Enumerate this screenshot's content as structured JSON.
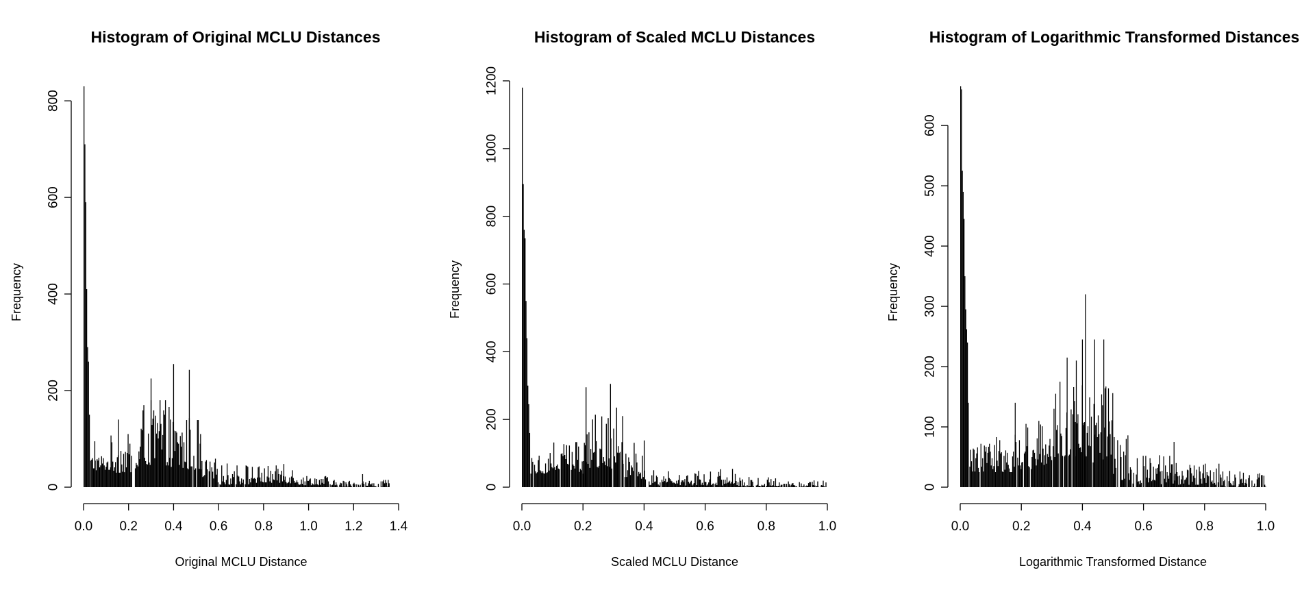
{
  "chart_data": [
    {
      "type": "bar",
      "title": "Histogram of Original MCLU Distances",
      "xlabel": "Original MCLU Distance",
      "ylabel": "Frequency",
      "xlim": [
        0,
        1.4
      ],
      "ylim": [
        0,
        830
      ],
      "x_ticks": [
        0.0,
        0.2,
        0.4,
        0.6,
        0.8,
        1.0,
        1.2,
        1.4
      ],
      "x_tick_labels": [
        "0.0",
        "0.2",
        "0.4",
        "0.6",
        "0.8",
        "1.0",
        "1.2",
        "1.4"
      ],
      "y_ticks": [
        0,
        200,
        400,
        600,
        800
      ],
      "y_tick_labels": [
        "0",
        "200",
        "400",
        "600",
        "800"
      ],
      "bin_width": 0.004,
      "peaks": [
        [
          0.002,
          830
        ],
        [
          0.006,
          710
        ],
        [
          0.01,
          590
        ],
        [
          0.014,
          410
        ],
        [
          0.018,
          290
        ],
        [
          0.022,
          260
        ],
        [
          0.026,
          150
        ],
        [
          0.05,
          95
        ],
        [
          0.155,
          140
        ],
        [
          0.3,
          225
        ],
        [
          0.34,
          180
        ],
        [
          0.4,
          255
        ],
        [
          0.47,
          243
        ],
        [
          0.52,
          110
        ],
        [
          0.89,
          48
        ],
        [
          1.24,
          27
        ]
      ],
      "segments": [
        [
          0.03,
          0.12,
          70,
          35
        ],
        [
          0.12,
          0.25,
          110,
          30
        ],
        [
          0.25,
          0.38,
          180,
          45
        ],
        [
          0.38,
          0.52,
          150,
          35
        ],
        [
          0.52,
          0.6,
          60,
          10
        ],
        [
          0.6,
          0.75,
          50,
          5
        ],
        [
          0.75,
          0.95,
          45,
          8
        ],
        [
          0.95,
          1.1,
          25,
          4
        ],
        [
          1.1,
          1.36,
          15,
          0
        ]
      ]
    },
    {
      "type": "bar",
      "title": "Histogram of Scaled MCLU Distances",
      "xlabel": "Scaled MCLU Distance",
      "ylabel": "Frequency",
      "xlim": [
        0,
        1.0
      ],
      "ylim": [
        0,
        1200
      ],
      "x_ticks": [
        0.0,
        0.2,
        0.4,
        0.6,
        0.8,
        1.0
      ],
      "x_tick_labels": [
        "0.0",
        "0.2",
        "0.4",
        "0.6",
        "0.8",
        "1.0"
      ],
      "y_ticks": [
        0,
        200,
        400,
        600,
        800,
        1000,
        1200
      ],
      "y_tick_labels": [
        "0",
        "200",
        "400",
        "600",
        "800",
        "1000",
        "1200"
      ],
      "bin_width": 0.003,
      "peaks": [
        [
          0.0015,
          1180
        ],
        [
          0.0045,
          895
        ],
        [
          0.0075,
          760
        ],
        [
          0.0105,
          735
        ],
        [
          0.0135,
          550
        ],
        [
          0.0165,
          440
        ],
        [
          0.0195,
          300
        ],
        [
          0.0225,
          245
        ],
        [
          0.0255,
          160
        ],
        [
          0.21,
          295
        ],
        [
          0.29,
          305
        ],
        [
          0.31,
          235
        ],
        [
          0.33,
          210
        ]
      ],
      "segments": [
        [
          0.028,
          0.1,
          110,
          40
        ],
        [
          0.1,
          0.2,
          150,
          40
        ],
        [
          0.2,
          0.33,
          220,
          55
        ],
        [
          0.33,
          0.4,
          140,
          25
        ],
        [
          0.4,
          0.55,
          50,
          5
        ],
        [
          0.55,
          0.7,
          55,
          5
        ],
        [
          0.7,
          0.85,
          30,
          2
        ],
        [
          0.85,
          0.995,
          22,
          0
        ]
      ]
    },
    {
      "type": "bar",
      "title": "Histogram of Logarithmic Transformed Distances",
      "xlabel": "Logarithmic Transformed Distance",
      "ylabel": "Frequency",
      "xlim": [
        0,
        1.0
      ],
      "ylim": [
        0,
        665
      ],
      "x_ticks": [
        0.0,
        0.2,
        0.4,
        0.6,
        0.8,
        1.0
      ],
      "x_tick_labels": [
        "0.0",
        "0.2",
        "0.4",
        "0.6",
        "0.8",
        "1.0"
      ],
      "y_ticks": [
        0,
        100,
        200,
        300,
        400,
        500,
        600
      ],
      "y_tick_labels": [
        "0",
        "100",
        "200",
        "300",
        "400",
        "500",
        "600"
      ],
      "bin_width": 0.0028,
      "peaks": [
        [
          0.0014,
          665
        ],
        [
          0.0042,
          660
        ],
        [
          0.007,
          525
        ],
        [
          0.0098,
          490
        ],
        [
          0.0126,
          445
        ],
        [
          0.0154,
          350
        ],
        [
          0.0182,
          295
        ],
        [
          0.021,
          262
        ],
        [
          0.0238,
          240
        ],
        [
          0.0266,
          140
        ],
        [
          0.18,
          140
        ],
        [
          0.35,
          215
        ],
        [
          0.38,
          210
        ],
        [
          0.4,
          245
        ],
        [
          0.41,
          320
        ],
        [
          0.44,
          245
        ],
        [
          0.47,
          245
        ],
        [
          0.7,
          75
        ]
      ],
      "segments": [
        [
          0.03,
          0.1,
          80,
          25
        ],
        [
          0.1,
          0.2,
          90,
          25
        ],
        [
          0.2,
          0.3,
          120,
          30
        ],
        [
          0.3,
          0.4,
          180,
          50
        ],
        [
          0.4,
          0.5,
          170,
          40
        ],
        [
          0.5,
          0.55,
          90,
          10
        ],
        [
          0.55,
          0.7,
          55,
          5
        ],
        [
          0.7,
          0.85,
          40,
          4
        ],
        [
          0.85,
          1.0,
          28,
          0
        ]
      ]
    }
  ]
}
